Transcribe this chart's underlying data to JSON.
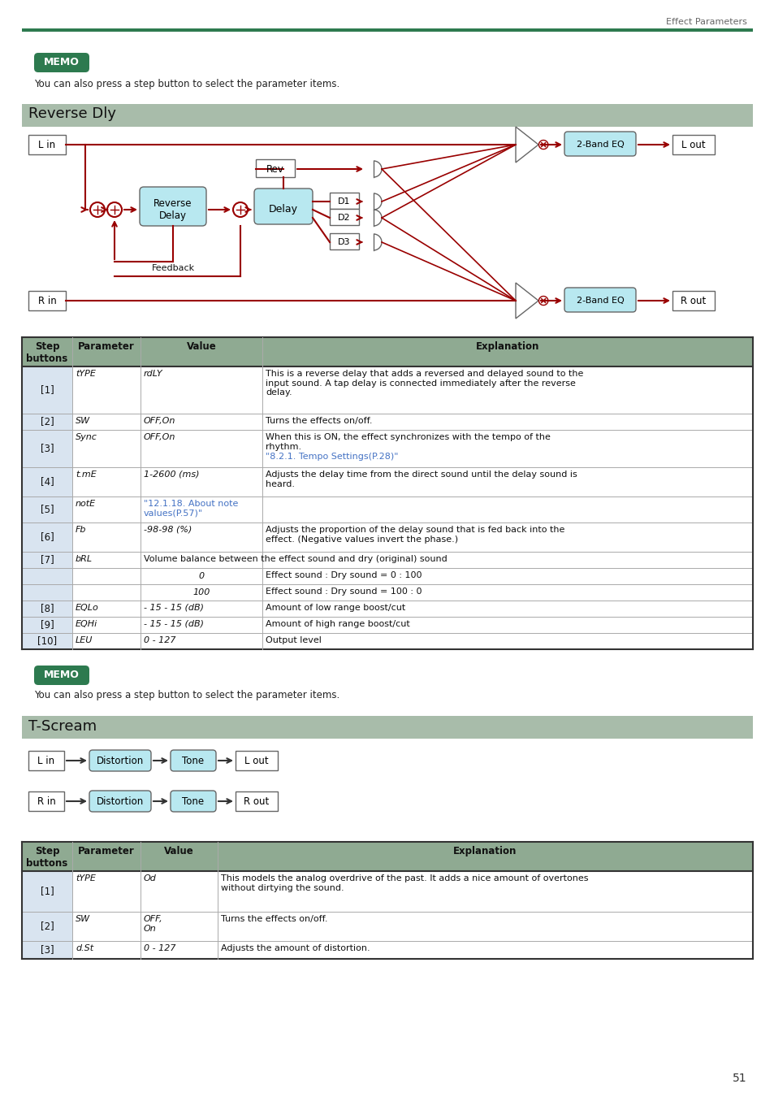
{
  "page_title": "Effect Parameters",
  "green_line_color": "#2d7a4f",
  "memo_bg": "#2d7a4f",
  "memo_text": "MEMO",
  "memo_sub": "You can also press a step button to select the parameter items.",
  "section1_title": "Reverse Dly",
  "section2_title": "T-Scream",
  "section_header_bg": "#a8bcaa",
  "table_header_bg": "#8faa92",
  "table_row_alt": "#d9e4f0",
  "blue_link": "#4472c4",
  "block_fill_cyan": "#b8e8f0",
  "block_fill_white": "#ffffff",
  "block_border": "#666666",
  "arrow_color": "#990000",
  "page_num": "51"
}
